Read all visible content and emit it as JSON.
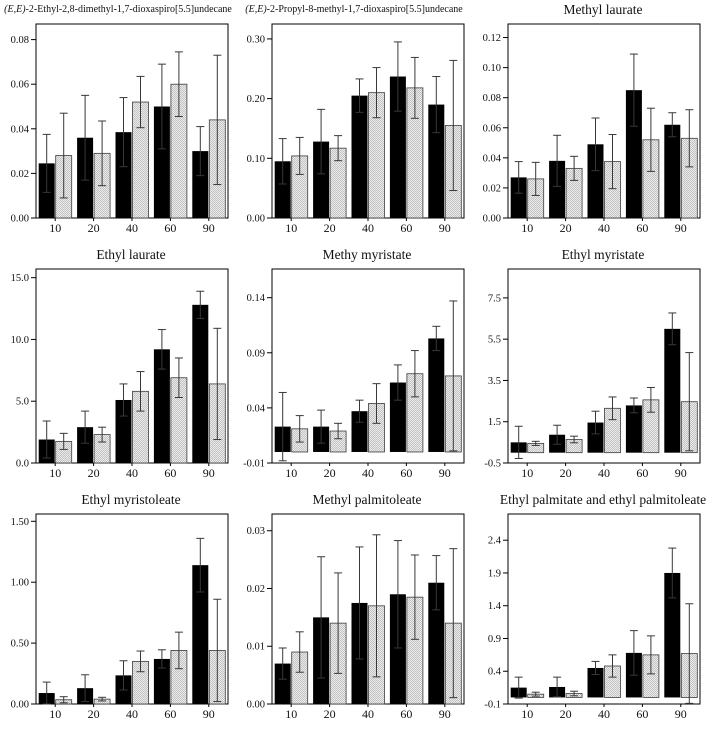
{
  "figure": {
    "background": "#ffffff",
    "columns": 3,
    "rows": 3
  },
  "colors": {
    "black_bar": "#000000",
    "gray_bar_base": "#ebebeb",
    "gray_bar_check": "#c2c2c2",
    "gray_bar_stroke": "#3c3c3c",
    "error_bar": "#383838",
    "frame": "#000000",
    "text": "#111111"
  },
  "chart_data": [
    {
      "type": "bar",
      "title_italic": "(E,E)",
      "title_rest": "-2-Ethyl-2,8-dimethyl-1,7-dioxaspiro[5.5]undecane",
      "categories": [
        "10",
        "20",
        "40",
        "60",
        "90"
      ],
      "ylim": [
        0,
        0.087
      ],
      "ytick_values": [
        0.0,
        0.02,
        0.04,
        0.06,
        0.08
      ],
      "ytick_labels": [
        "0.00",
        "0.02",
        "0.04",
        "0.06",
        "0.08"
      ],
      "grid": false,
      "legend": "none",
      "series": [
        {
          "name": "black",
          "values": [
            0.0245,
            0.036,
            0.0385,
            0.05,
            0.03
          ],
          "errors": [
            0.013,
            0.019,
            0.0155,
            0.019,
            0.011
          ]
        },
        {
          "name": "hatched-gray",
          "values": [
            0.028,
            0.029,
            0.052,
            0.06,
            0.044
          ],
          "errors": [
            0.019,
            0.0145,
            0.0115,
            0.0145,
            0.029
          ]
        }
      ]
    },
    {
      "type": "bar",
      "title_italic": "(E,E)",
      "title_rest": "-2-Propyl-8-methyl-1,7-dioxaspiro[5.5]undecane",
      "categories": [
        "10",
        "20",
        "40",
        "60",
        "90"
      ],
      "ylim": [
        0,
        0.325
      ],
      "ytick_values": [
        0.0,
        0.1,
        0.2,
        0.3
      ],
      "ytick_labels": [
        "0.00",
        "0.10",
        "0.20",
        "0.30"
      ],
      "grid": false,
      "legend": "none",
      "series": [
        {
          "name": "black",
          "values": [
            0.095,
            0.128,
            0.205,
            0.237,
            0.19
          ],
          "errors": [
            0.038,
            0.054,
            0.028,
            0.058,
            0.047
          ]
        },
        {
          "name": "hatched-gray",
          "values": [
            0.104,
            0.117,
            0.21,
            0.218,
            0.155
          ],
          "errors": [
            0.031,
            0.021,
            0.042,
            0.051,
            0.109
          ]
        }
      ]
    },
    {
      "type": "bar",
      "title_italic": "",
      "title_rest": "Methyl laurate",
      "categories": [
        "10",
        "20",
        "40",
        "60",
        "90"
      ],
      "ylim": [
        0,
        0.129
      ],
      "ytick_values": [
        0.0,
        0.02,
        0.04,
        0.06,
        0.08,
        0.1,
        0.12
      ],
      "ytick_labels": [
        "0.00",
        "0.02",
        "0.04",
        "0.06",
        "0.08",
        "0.10",
        "0.12"
      ],
      "grid": false,
      "legend": "none",
      "series": [
        {
          "name": "black",
          "values": [
            0.027,
            0.038,
            0.049,
            0.085,
            0.062
          ],
          "errors": [
            0.0105,
            0.017,
            0.0175,
            0.024,
            0.008
          ]
        },
        {
          "name": "hatched-gray",
          "values": [
            0.026,
            0.033,
            0.0375,
            0.052,
            0.053
          ],
          "errors": [
            0.011,
            0.008,
            0.018,
            0.021,
            0.019
          ]
        }
      ]
    },
    {
      "type": "bar",
      "title_italic": "",
      "title_rest": "Ethyl laurate",
      "categories": [
        "10",
        "20",
        "40",
        "60",
        "90"
      ],
      "ylim": [
        0,
        15.7
      ],
      "ytick_values": [
        0.0,
        5.0,
        10.0,
        15.0
      ],
      "ytick_labels": [
        "0.0",
        "5.0",
        "10.0",
        "15.0"
      ],
      "grid": false,
      "legend": "none",
      "series": [
        {
          "name": "black",
          "values": [
            1.9,
            2.9,
            5.1,
            9.2,
            12.8
          ],
          "errors": [
            1.5,
            1.3,
            1.3,
            1.6,
            1.1
          ]
        },
        {
          "name": "hatched-gray",
          "values": [
            1.75,
            2.3,
            5.8,
            6.9,
            6.4
          ],
          "errors": [
            0.65,
            0.6,
            1.6,
            1.6,
            4.5
          ]
        }
      ]
    },
    {
      "type": "bar",
      "title_italic": "",
      "title_rest": "Methy myristate",
      "categories": [
        "10",
        "20",
        "40",
        "60",
        "90"
      ],
      "ylim": [
        -0.01,
        0.166
      ],
      "ytick_values": [
        -0.01,
        0.04,
        0.09,
        0.14
      ],
      "ytick_labels": [
        "-0.01",
        "0.04",
        "0.09",
        "0.14"
      ],
      "grid": false,
      "legend": "none",
      "series": [
        {
          "name": "black",
          "values": [
            0.023,
            0.023,
            0.037,
            0.063,
            0.103
          ],
          "errors": [
            0.031,
            0.015,
            0.01,
            0.016,
            0.011
          ]
        },
        {
          "name": "hatched-gray",
          "values": [
            0.021,
            0.019,
            0.044,
            0.071,
            0.069
          ],
          "errors": [
            0.012,
            0.007,
            0.018,
            0.021,
            0.068
          ]
        }
      ]
    },
    {
      "type": "bar",
      "title_italic": "",
      "title_rest": "Ethyl myristate",
      "categories": [
        "10",
        "20",
        "40",
        "60",
        "90"
      ],
      "ylim": [
        -0.5,
        8.9
      ],
      "ytick_values": [
        -0.5,
        1.5,
        3.5,
        5.5,
        7.5
      ],
      "ytick_labels": [
        "-0.5",
        "1.5",
        "3.5",
        "5.5",
        "7.5"
      ],
      "grid": false,
      "legend": "none",
      "series": [
        {
          "name": "black",
          "values": [
            0.5,
            0.87,
            1.46,
            2.29,
            6.0
          ],
          "errors": [
            0.78,
            0.46,
            0.55,
            0.36,
            0.77
          ]
        },
        {
          "name": "hatched-gray",
          "values": [
            0.45,
            0.64,
            2.15,
            2.56,
            2.47
          ],
          "errors": [
            0.1,
            0.16,
            0.55,
            0.6,
            2.38
          ]
        }
      ]
    },
    {
      "type": "bar",
      "title_italic": "",
      "title_rest": "Ethyl myristoleate",
      "categories": [
        "10",
        "20",
        "40",
        "60",
        "90"
      ],
      "ylim": [
        0,
        1.56
      ],
      "ytick_values": [
        0.0,
        0.5,
        1.0,
        1.5
      ],
      "ytick_labels": [
        "0.00",
        "0.50",
        "1.00",
        "1.50"
      ],
      "grid": false,
      "legend": "none",
      "series": [
        {
          "name": "black",
          "values": [
            0.09,
            0.13,
            0.235,
            0.37,
            1.14
          ],
          "errors": [
            0.09,
            0.11,
            0.12,
            0.075,
            0.22
          ]
        },
        {
          "name": "hatched-gray",
          "values": [
            0.035,
            0.04,
            0.35,
            0.44,
            0.44
          ],
          "errors": [
            0.025,
            0.015,
            0.085,
            0.15,
            0.42
          ]
        }
      ]
    },
    {
      "type": "bar",
      "title_italic": "",
      "title_rest": "Methyl palmitoleate",
      "categories": [
        "10",
        "20",
        "40",
        "60",
        "90"
      ],
      "ylim": [
        0,
        0.0329
      ],
      "ytick_values": [
        0.0,
        0.01,
        0.02,
        0.03
      ],
      "ytick_labels": [
        "0.00",
        "0.01",
        "0.02",
        "0.03"
      ],
      "grid": false,
      "legend": "none",
      "series": [
        {
          "name": "black",
          "values": [
            0.007,
            0.015,
            0.0175,
            0.019,
            0.021
          ],
          "errors": [
            0.0027,
            0.0105,
            0.0097,
            0.0093,
            0.0047
          ]
        },
        {
          "name": "hatched-gray",
          "values": [
            0.009,
            0.014,
            0.017,
            0.0185,
            0.014
          ],
          "errors": [
            0.0035,
            0.0087,
            0.0123,
            0.0073,
            0.0129
          ]
        }
      ]
    },
    {
      "type": "bar",
      "title_italic": "",
      "title_rest": "Ethyl palmitate and ethyl palmitoleate",
      "categories": [
        "10",
        "20",
        "40",
        "60",
        "90"
      ],
      "ylim": [
        -0.1,
        2.8
      ],
      "ytick_values": [
        -0.1,
        0.4,
        0.9,
        1.4,
        1.9,
        2.4
      ],
      "ytick_labels": [
        "-0.1",
        "0.4",
        "0.9",
        "1.4",
        "1.9",
        "2.4"
      ],
      "grid": false,
      "legend": "none",
      "series": [
        {
          "name": "black",
          "values": [
            0.15,
            0.16,
            0.45,
            0.68,
            1.9
          ],
          "errors": [
            0.16,
            0.15,
            0.1,
            0.34,
            0.38
          ]
        },
        {
          "name": "hatched-gray",
          "values": [
            0.05,
            0.06,
            0.48,
            0.65,
            0.67
          ],
          "errors": [
            0.03,
            0.035,
            0.17,
            0.29,
            0.76
          ]
        }
      ]
    }
  ]
}
